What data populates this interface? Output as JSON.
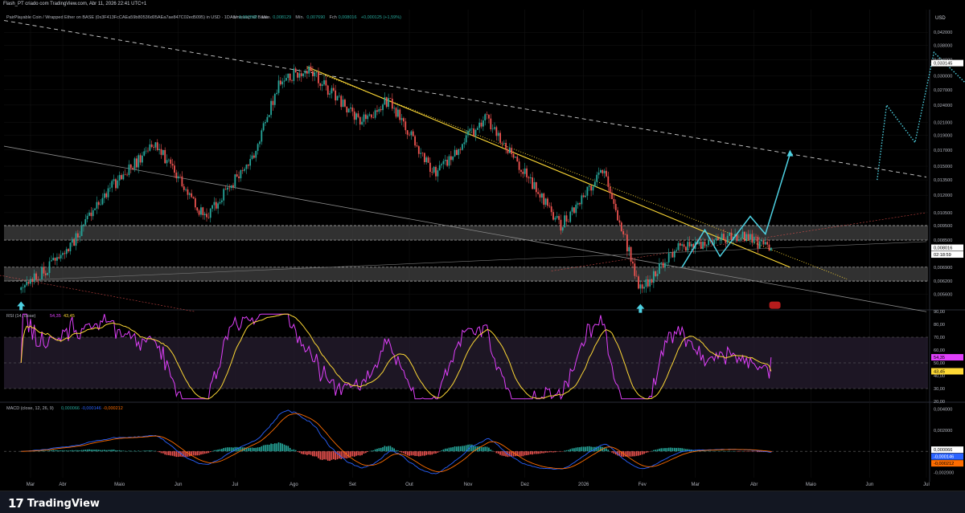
{
  "header": {
    "attribution": "Flash_PT criado com TradingView.com, Abr 11, 2026 22:41 UTC+1"
  },
  "main_pane": {
    "symbol_line": "PairPlayable Coin / Wrapped Ether on BASE (0x3F413FcCAEa59b80536d05AEa7ae847C02ed5095) in USD · 1D · Uniswap v2 Base",
    "ohlc": [
      {
        "k": "Abr",
        "v": "0,007890"
      },
      {
        "k": "Máx.",
        "v": "0,008129"
      },
      {
        "k": "Mín.",
        "v": "0,007690"
      },
      {
        "k": "Fch",
        "v": "0,008016"
      },
      {
        "k": "",
        "v": "+0,000125 (+1,59%)"
      }
    ],
    "currency": "USD",
    "price_ticks": [
      "0,048000",
      "0,042000",
      "0,038000",
      "0,034000",
      "0,030000",
      "0,027000",
      "0,024000",
      "0,021000",
      "0,019000",
      "0,017000",
      "0,015000",
      "0,013500",
      "0,012000",
      "0,010500",
      "0,009500",
      "0,008500",
      "0,006900",
      "0,006200",
      "0,005600",
      "0,005050"
    ],
    "tags": [
      {
        "text": "0,033145",
        "bg": "#ffffff",
        "fg": "#000000"
      },
      {
        "text": "0,008016",
        "bg": "#ffffff",
        "fg": "#000000"
      },
      {
        "text": "02:18:59",
        "bg": "#ffffff",
        "fg": "#000000"
      }
    ]
  },
  "rsi_pane": {
    "label": "RSI (14, close)",
    "value1": "54,35",
    "value2": "43,45",
    "ticks": [
      "90,00",
      "80,00",
      "70,00",
      "60,00",
      "50,00",
      "40,00",
      "30,00",
      "20,00"
    ],
    "tags": [
      {
        "text": "54,35",
        "bg": "#e040fb",
        "fg": "#000000"
      },
      {
        "text": "43,45",
        "bg": "#fdd835",
        "fg": "#000000"
      }
    ],
    "colors": {
      "rsi": "#e040fb",
      "ma": "#fdd835",
      "band": "#2a1f33"
    }
  },
  "macd_pane": {
    "label": "MACD (close, 12, 26, 9)",
    "value_hist": "0,000066",
    "value_macd": "-0,000146",
    "value_signal": "-0,000212",
    "ticks": [
      "0,004000",
      "0,002000",
      "0,000000",
      "-0,002000"
    ],
    "tags": [
      {
        "text": "0,000066",
        "bg": "#ffffff",
        "fg": "#000000"
      },
      {
        "text": "-0,000146",
        "bg": "#2962ff",
        "fg": "#ffffff"
      },
      {
        "text": "-0,000212",
        "bg": "#ff6d00",
        "fg": "#000000"
      }
    ],
    "colors": {
      "macd": "#2962ff",
      "signal": "#ff6d00",
      "hist_up": "#26a69a",
      "hist_down": "#ef5350"
    }
  },
  "time_axis": [
    "Mar",
    "Abr",
    "Maio",
    "Jun",
    "Jul",
    "Ago",
    "Set",
    "Out",
    "Nov",
    "Dez",
    "2026",
    "Fev",
    "Mar",
    "Abr",
    "Maio",
    "Jun",
    "Jul"
  ],
  "footer": {
    "brand": "TradingView",
    "mark": "17"
  },
  "colors": {
    "up": "#26a69a",
    "down": "#ef5350",
    "trend": "#fdd835",
    "projection": "#4dd0e1",
    "zone": "#8a8a8a"
  },
  "chart_data": [
    {
      "type": "candlestick",
      "title": "PairPlayable Coin / Wrapped Ether on BASE",
      "y_unit": "USD",
      "ylim": [
        0.005,
        0.05
      ],
      "y_scale": "log",
      "x_range": [
        "Mar 2025",
        "Jul 2026"
      ],
      "key_points": [
        {
          "date": "2025-03-10",
          "price": 0.0059
        },
        {
          "date": "2025-04-01",
          "price": 0.0075
        },
        {
          "date": "2025-04-25",
          "price": 0.0125
        },
        {
          "date": "2025-05-20",
          "price": 0.018
        },
        {
          "date": "2025-06-15",
          "price": 0.01
        },
        {
          "date": "2025-07-10",
          "price": 0.016
        },
        {
          "date": "2025-07-25",
          "price": 0.029
        },
        {
          "date": "2025-08-08",
          "price": 0.032
        },
        {
          "date": "2025-09-05",
          "price": 0.021
        },
        {
          "date": "2025-09-20",
          "price": 0.025
        },
        {
          "date": "2025-10-15",
          "price": 0.014
        },
        {
          "date": "2025-11-10",
          "price": 0.022
        },
        {
          "date": "2025-12-05",
          "price": 0.013
        },
        {
          "date": "2025-12-20",
          "price": 0.0095
        },
        {
          "date": "2026-01-12",
          "price": 0.0145
        },
        {
          "date": "2026-01-31",
          "price": 0.0058
        },
        {
          "date": "2026-02-20",
          "price": 0.008
        },
        {
          "date": "2026-03-25",
          "price": 0.0088
        },
        {
          "date": "2026-04-10",
          "price": 0.008
        }
      ],
      "last_close": 0.008016,
      "projection_targets": [
        0.033145,
        0.048
      ],
      "support_zones": [
        [
          0.0062,
          0.0069
        ],
        [
          0.0085,
          0.0095
        ]
      ],
      "grid": true
    },
    {
      "type": "line",
      "title": "RSI (14, close)",
      "ylim": [
        20,
        90
      ],
      "series": [
        {
          "name": "RSI",
          "last": 54.35
        },
        {
          "name": "MA",
          "last": 43.45
        }
      ]
    },
    {
      "type": "bar",
      "title": "MACD (close, 12, 26, 9)",
      "ylim": [
        -0.0025,
        0.0045
      ],
      "series": [
        {
          "name": "Histogram",
          "last": 6.6e-05
        },
        {
          "name": "MACD",
          "last": -0.000146
        },
        {
          "name": "Signal",
          "last": -0.000212
        }
      ]
    }
  ]
}
